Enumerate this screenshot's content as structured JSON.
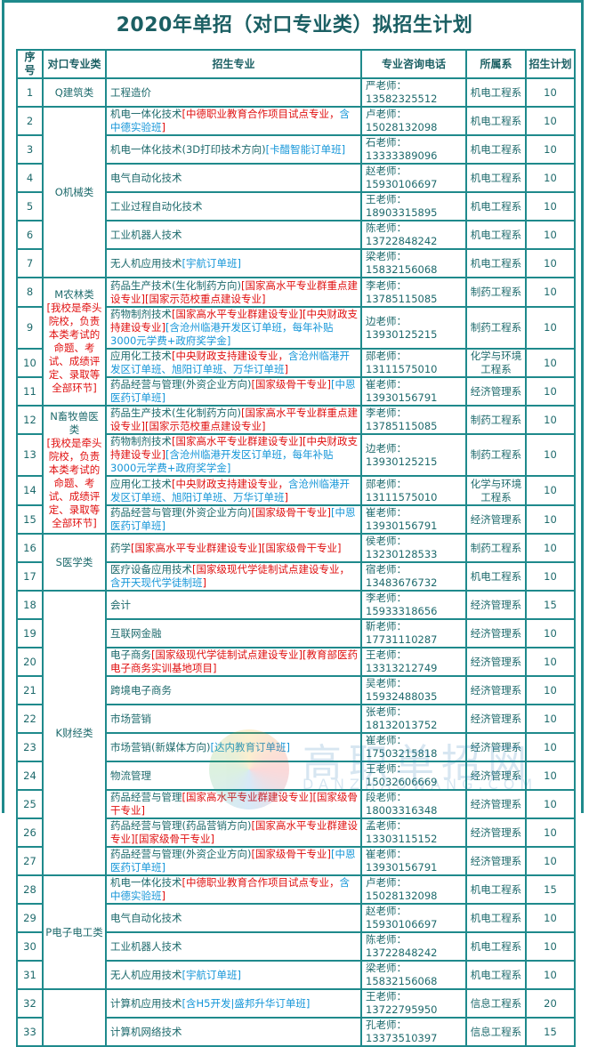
{
  "title": "2020年单招（对口专业类）拟招生计划",
  "headers": [
    "序号",
    "对口专业类",
    "招生专业",
    "专业咨询电话",
    "所属系",
    "招生计划"
  ],
  "categories": [
    {
      "name": "Q建筑类",
      "note": "",
      "rows": 1
    },
    {
      "name": "O机械类",
      "note": "",
      "rows": 6
    },
    {
      "name": "M农林类",
      "note": "[我校是牵头院校，负责本类考试的命题、考试、成绩评定、录取等全部环节]",
      "rows": 4
    },
    {
      "name": "N畜牧兽医类",
      "note": "[我校是牵头院校，负责本类考试的命题、考试、成绩评定、录取等全部环节]",
      "rows": 4
    },
    {
      "name": "S医学类",
      "note": "",
      "rows": 2
    },
    {
      "name": "K财经类",
      "note": "",
      "rows": 10
    },
    {
      "name": "P电子电工类",
      "note": "",
      "rows": 4
    },
    {
      "name": "",
      "note": "",
      "rows": 2
    }
  ],
  "rows": [
    {
      "no": "1",
      "major": [
        [
          "d",
          "工程造价"
        ]
      ],
      "phone": "严老师：13582325512",
      "dept": "机电工程系",
      "plan": "10"
    },
    {
      "no": "2",
      "major": [
        [
          "d",
          "机电一体化技术"
        ],
        [
          "r",
          "[中德职业教育合作项目试点专业，"
        ],
        [
          "b",
          "含中德实验班"
        ],
        [
          "r",
          "]"
        ]
      ],
      "phone": "卢老师：15028132098",
      "dept": "机电工程系",
      "plan": "10"
    },
    {
      "no": "3",
      "major": [
        [
          "d",
          "机电一体化技术(3D打印技术方向)"
        ],
        [
          "b",
          "[卡醋智能订单班]"
        ]
      ],
      "phone": "石老师：13333389096",
      "dept": "机电工程系",
      "plan": "10"
    },
    {
      "no": "4",
      "major": [
        [
          "d",
          "电气自动化技术"
        ]
      ],
      "phone": "赵老师：15930106697",
      "dept": "机电工程系",
      "plan": "10"
    },
    {
      "no": "5",
      "major": [
        [
          "d",
          "工业过程自动化技术"
        ]
      ],
      "phone": "王老师：18903315895",
      "dept": "机电工程系",
      "plan": "10"
    },
    {
      "no": "6",
      "major": [
        [
          "d",
          "工业机器人技术"
        ]
      ],
      "phone": "陈老师：13722848242",
      "dept": "机电工程系",
      "plan": "10"
    },
    {
      "no": "7",
      "major": [
        [
          "d",
          "无人机应用技术"
        ],
        [
          "b",
          "[宇航订单班]"
        ]
      ],
      "phone": "梁老师：15832156068",
      "dept": "机电工程系",
      "plan": "10"
    },
    {
      "no": "8",
      "major": [
        [
          "d",
          "药品生产技术(生化制药方向)"
        ],
        [
          "r",
          "[国家高水平专业群重点建设专业][国家示范校重点建设专业]"
        ]
      ],
      "phone": "李老师：13785115085",
      "dept": "制药工程系",
      "plan": "10"
    },
    {
      "no": "9",
      "major": [
        [
          "d",
          "药物制剂技术"
        ],
        [
          "r",
          "[国家高水平专业群建设专业][中央财政支持建设专业]"
        ],
        [
          "b",
          "[含沧州临港开发区订单班，每年补贴3000元学费+政府奖学金]"
        ]
      ],
      "phone": "边老师：13930125215",
      "dept": "制药工程系",
      "plan": "10"
    },
    {
      "no": "10",
      "major": [
        [
          "d",
          "应用化工技术"
        ],
        [
          "r",
          "[中央财政支持建设专业，"
        ],
        [
          "b",
          "含沧州临港开发区订单班、旭阳订单班、万华订单班"
        ],
        [
          "r",
          "]"
        ]
      ],
      "phone": "郧老师：13111575010",
      "dept": "化学与环境工程系",
      "plan": "10"
    },
    {
      "no": "11",
      "major": [
        [
          "d",
          "药品经营与管理(外资企业方向)"
        ],
        [
          "r",
          "[国家级骨干专业]"
        ],
        [
          "b",
          "[中恩医药订单班]"
        ]
      ],
      "phone": "崔老师：13930156791",
      "dept": "经济管理系",
      "plan": "10"
    },
    {
      "no": "12",
      "major": [
        [
          "d",
          "药品生产技术(生化制药方向)"
        ],
        [
          "r",
          "[国家高水平专业群重点建设专业][国家示范校重点建设专业]"
        ]
      ],
      "phone": "李老师：13785115085",
      "dept": "制药工程系",
      "plan": "10"
    },
    {
      "no": "13",
      "major": [
        [
          "d",
          "药物制剂技术"
        ],
        [
          "r",
          "[国家高水平专业群建设专业][中央财政支持建设专业]"
        ],
        [
          "b",
          "[含沧州临港开发区订单班，每年补贴3000元学费+政府奖学金]"
        ]
      ],
      "phone": "边老师：13930125215",
      "dept": "制药工程系",
      "plan": "10"
    },
    {
      "no": "14",
      "major": [
        [
          "d",
          "应用化工技术"
        ],
        [
          "r",
          "[中央财政支持建设专业，"
        ],
        [
          "b",
          "含沧州临港开发区订单班、旭阳订单班、万华订单班"
        ],
        [
          "r",
          "]"
        ]
      ],
      "phone": "郧老师：13111575010",
      "dept": "化学与环境工程系",
      "plan": "10"
    },
    {
      "no": "15",
      "major": [
        [
          "d",
          "药品经营与管理(外资企业方向)"
        ],
        [
          "r",
          "[国家级骨干专业]"
        ],
        [
          "b",
          "[中恩医药订单班]"
        ]
      ],
      "phone": "崔老师：13930156791",
      "dept": "经济管理系",
      "plan": "10"
    },
    {
      "no": "16",
      "major": [
        [
          "d",
          "药学"
        ],
        [
          "r",
          "[国家高水平专业群建设专业][国家级骨干专业]"
        ]
      ],
      "phone": "侯老师：13230128533",
      "dept": "制药工程系",
      "plan": "10"
    },
    {
      "no": "17",
      "major": [
        [
          "d",
          "医疗设备应用技术"
        ],
        [
          "r",
          "[国家级现代学徒制试点建设专业，"
        ],
        [
          "b",
          "含开天现代学徒制班"
        ],
        [
          "r",
          "]"
        ]
      ],
      "phone": "宿老师：13483676732",
      "dept": "机电工程系",
      "plan": "10"
    },
    {
      "no": "18",
      "major": [
        [
          "d",
          "会计"
        ]
      ],
      "phone": "李老师：15933318656",
      "dept": "经济管理系",
      "plan": "15"
    },
    {
      "no": "19",
      "major": [
        [
          "d",
          "互联网金融"
        ]
      ],
      "phone": "靳老师：17731110287",
      "dept": "经济管理系",
      "plan": "10"
    },
    {
      "no": "20",
      "major": [
        [
          "d",
          "电子商务"
        ],
        [
          "r",
          "[国家级现代学徒制试点建设专业][教育部医药电子商务实训基地项目]"
        ]
      ],
      "phone": "王老师：13313212749",
      "dept": "经济管理系",
      "plan": "10"
    },
    {
      "no": "21",
      "major": [
        [
          "d",
          "跨境电子商务"
        ]
      ],
      "phone": "吴老师：15932488035",
      "dept": "经济管理系",
      "plan": "10"
    },
    {
      "no": "22",
      "major": [
        [
          "d",
          "市场营销"
        ]
      ],
      "phone": "张老师：18132013752",
      "dept": "经济管理系",
      "plan": "10"
    },
    {
      "no": "23",
      "major": [
        [
          "d",
          "市场营销(新媒体方向)"
        ],
        [
          "b",
          "[达内教育订单班]"
        ]
      ],
      "phone": "崔老师：17503215818",
      "dept": "经济管理系",
      "plan": "10"
    },
    {
      "no": "24",
      "major": [
        [
          "d",
          "物流管理"
        ]
      ],
      "phone": "王老师：15032606669",
      "dept": "经济管理系",
      "plan": "10"
    },
    {
      "no": "25",
      "major": [
        [
          "d",
          "药品经营与管理"
        ],
        [
          "r",
          "[国家高水平专业群建设专业][国家级骨干专业]"
        ]
      ],
      "phone": "段老师：18003316348",
      "dept": "经济管理系",
      "plan": "10"
    },
    {
      "no": "26",
      "major": [
        [
          "d",
          "药品经营与管理(药品营销方向)"
        ],
        [
          "r",
          "[国家高水平专业群建设专业][国家级骨干专业]"
        ]
      ],
      "phone": "孟老师：13303115152",
      "dept": "经济管理系",
      "plan": "10"
    },
    {
      "no": "27",
      "major": [
        [
          "d",
          "药品经营与管理(外资企业方向)"
        ],
        [
          "r",
          "[国家级骨干专业]"
        ],
        [
          "b",
          "[中恩医药订单班]"
        ]
      ],
      "phone": "崔老师：13930156791",
      "dept": "经济管理系",
      "plan": "10"
    },
    {
      "no": "28",
      "major": [
        [
          "d",
          "机电一体化技术"
        ],
        [
          "r",
          "[中德职业教育合作项目试点专业，"
        ],
        [
          "b",
          "含中德实验班"
        ],
        [
          "r",
          "]"
        ]
      ],
      "phone": "卢老师：15028132098",
      "dept": "机电工程系",
      "plan": "15"
    },
    {
      "no": "29",
      "major": [
        [
          "d",
          "电气自动化技术"
        ]
      ],
      "phone": "赵老师：15930106697",
      "dept": "机电工程系",
      "plan": "10"
    },
    {
      "no": "30",
      "major": [
        [
          "d",
          "工业机器人技术"
        ]
      ],
      "phone": "陈老师：13722848242",
      "dept": "机电工程系",
      "plan": "10"
    },
    {
      "no": "31",
      "major": [
        [
          "d",
          "无人机应用技术"
        ],
        [
          "b",
          "[宇航订单班]"
        ]
      ],
      "phone": "梁老师：15832156068",
      "dept": "机电工程系",
      "plan": "10"
    },
    {
      "no": "32",
      "major": [
        [
          "d",
          "计算机应用技术"
        ],
        [
          "b",
          "[含H5开发|盛邦升华订单班]"
        ]
      ],
      "phone": "王老师：13722795950",
      "dept": "信息工程系",
      "plan": "20"
    },
    {
      "no": "33",
      "major": [
        [
          "d",
          "计算机网络技术"
        ]
      ],
      "phone": "孔老师：13373510397",
      "dept": "信息工程系",
      "plan": "15"
    }
  ],
  "watermark": {
    "text": "高职单招网",
    "sub": "DANZHAOWANG.COM"
  },
  "colors": {
    "border": "#1f8a8c",
    "text": "#1e6a6c",
    "highlight_red": "#e01010",
    "highlight_blue": "#1596d8"
  }
}
